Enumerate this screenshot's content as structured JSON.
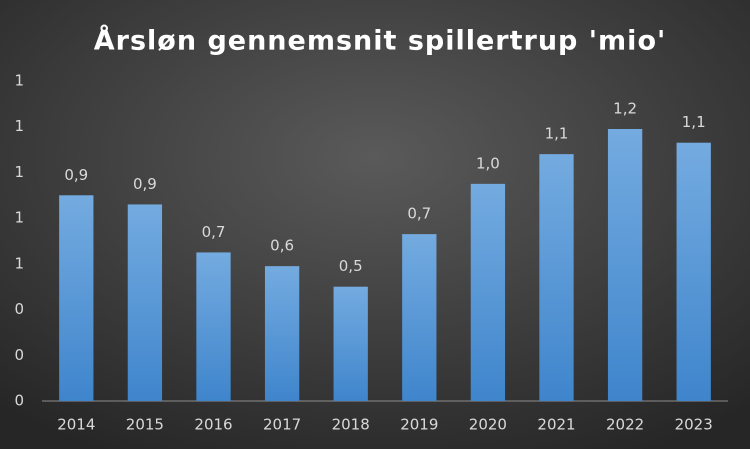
{
  "chart_data": {
    "type": "bar",
    "title": "Årsløn gennemsnit spillertrup 'mio'",
    "categories": [
      "2014",
      "2015",
      "2016",
      "2017",
      "2018",
      "2019",
      "2020",
      "2021",
      "2022",
      "2023"
    ],
    "values": [
      0.9,
      0.86,
      0.65,
      0.59,
      0.5,
      0.73,
      0.95,
      1.08,
      1.19,
      1.13
    ],
    "value_labels": [
      "0,9",
      "0,9",
      "0,7",
      "0,6",
      "0,5",
      "0,7",
      "1,0",
      "1,1",
      "1,2",
      "1,1"
    ],
    "color": "#5b9bd5",
    "ylim": [
      0,
      1.4
    ],
    "yticks": [
      0,
      {
        "value": 0.2,
        "label": "0"
      },
      {
        "value": 0.4,
        "label": "0"
      },
      {
        "value": 0.6,
        "label": "1"
      },
      {
        "value": 0.8,
        "label": "1"
      },
      1,
      {
        "value": 1.2,
        "label": "1"
      },
      {
        "value": 1.4,
        "label": "1"
      }
    ],
    "grid": false
  }
}
